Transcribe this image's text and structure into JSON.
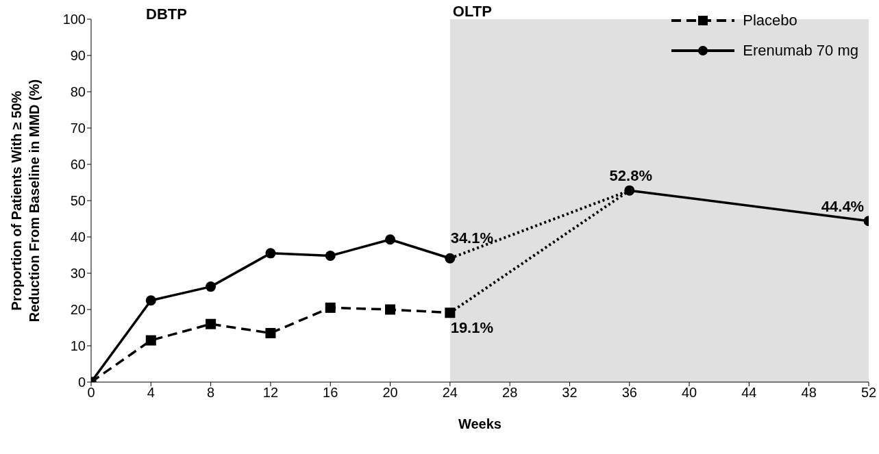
{
  "chart_data": {
    "type": "line",
    "xlabel": "Weeks",
    "ylabel": "Proportion of Patients With ≥ 50%\nReduction From Baseline in MMD (%)",
    "xlim": [
      0,
      52
    ],
    "xticks": [
      0,
      4,
      8,
      12,
      16,
      20,
      24,
      28,
      32,
      36,
      40,
      44,
      48,
      52
    ],
    "ylim": [
      0,
      100
    ],
    "yticks": [
      0,
      10,
      20,
      30,
      40,
      50,
      60,
      70,
      80,
      90,
      100
    ],
    "legend": "top right",
    "series": [
      {
        "name": "Placebo",
        "color": "#000000",
        "x": [
          0,
          4,
          8,
          12,
          16,
          20,
          24
        ],
        "values": [
          0,
          11.5,
          16,
          13.5,
          20.5,
          20,
          19.1
        ],
        "marker": "square",
        "line_style": "dashed"
      },
      {
        "name": "Erenumab 70 mg",
        "color": "#000000",
        "x": [
          0,
          4,
          8,
          12,
          16,
          20,
          24
        ],
        "values": [
          0,
          22.5,
          26.3,
          35.5,
          34.8,
          39.3,
          34.1
        ],
        "marker": "circle",
        "line_style": "solid"
      },
      {
        "color": "#000000",
        "x": [
          24,
          36
        ],
        "values": [
          19.1,
          52.8
        ],
        "line_style": "dotted"
      },
      {
        "color": "#000000",
        "x": [
          24,
          36
        ],
        "values": [
          34.1,
          52.8
        ],
        "line_style": "dotted"
      },
      {
        "color": "#000000",
        "x": [
          36,
          52
        ],
        "values": [
          52.8,
          44.4
        ],
        "marker": "circle",
        "line_style": "solid"
      }
    ],
    "bands": [
      {
        "axis": "x",
        "from": 24,
        "to": 52,
        "label": "OLTP",
        "color": "#e0e0e0"
      }
    ],
    "annotations": [
      "DBTP",
      {
        "text": "34.1%",
        "x": 24,
        "y": 34.1
      },
      {
        "text": "19.1%",
        "x": 24,
        "y": 19.1
      },
      {
        "text": "52.8%",
        "x": 36,
        "y": 52.8
      },
      {
        "text": "44.4%",
        "x": 52,
        "y": 44.4
      }
    ]
  }
}
